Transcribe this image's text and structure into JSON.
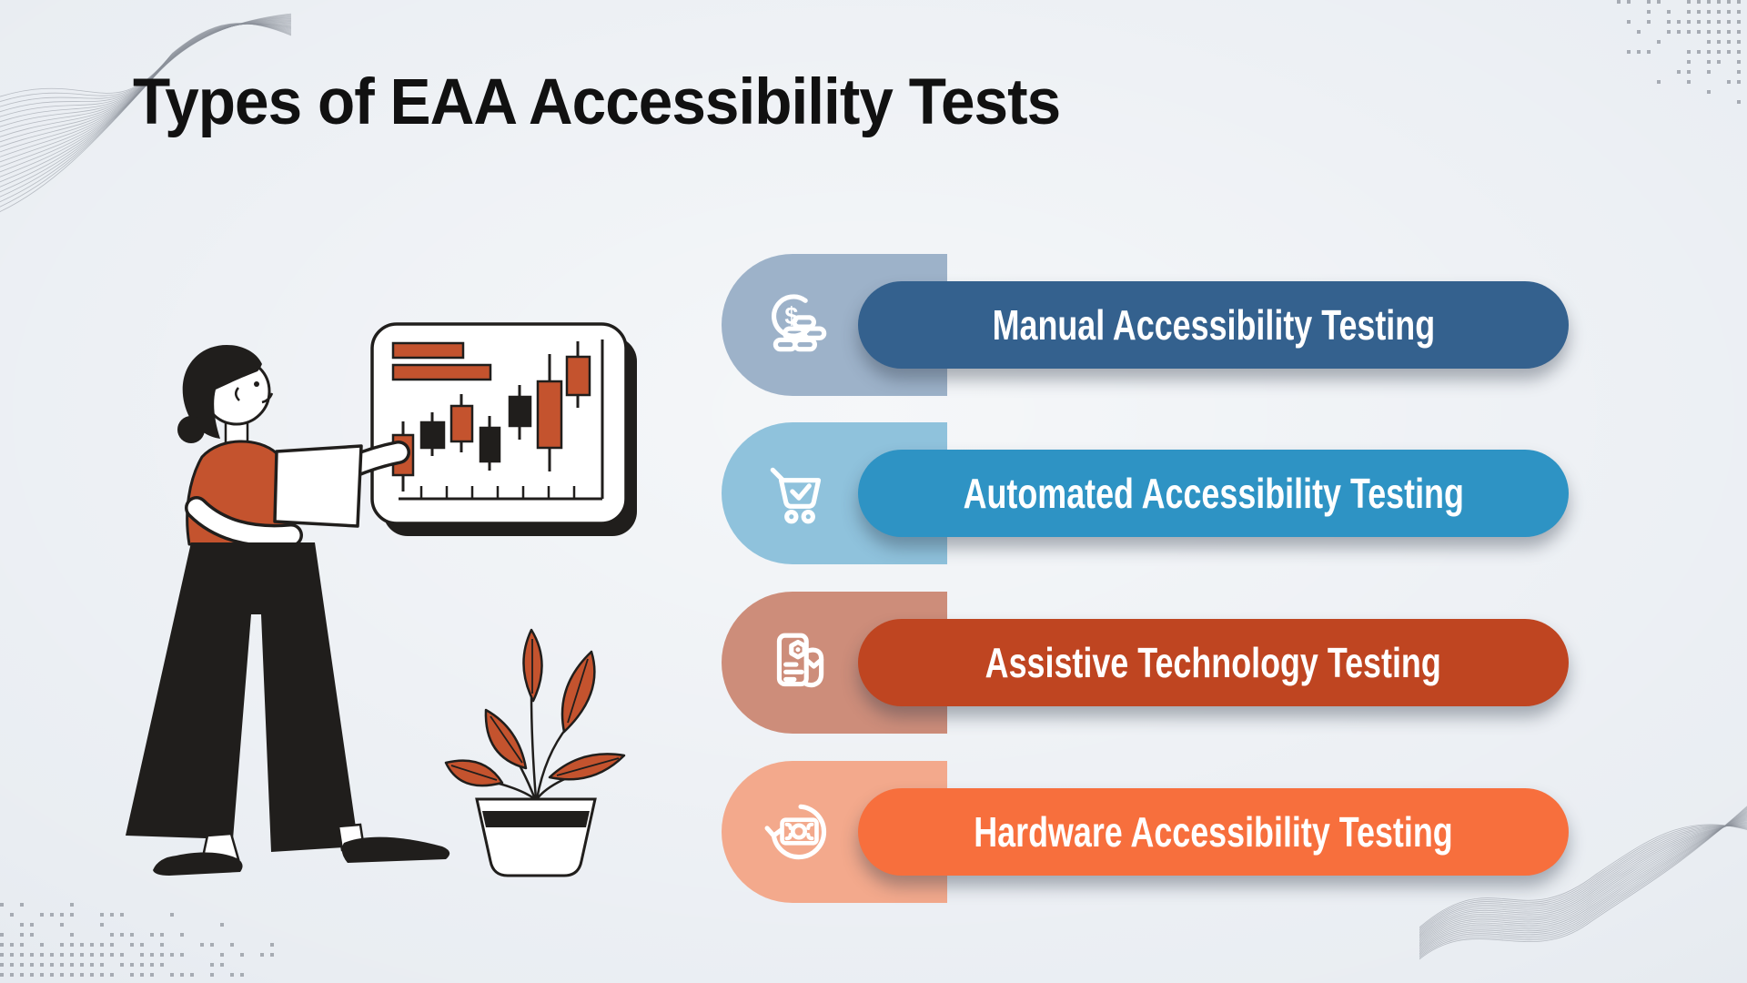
{
  "title": "Types of EAA Accessibility Tests",
  "title_color": "#111111",
  "background_color": "#E9EDF2",
  "decoration_color": "#8A9099",
  "items": [
    {
      "label": "Manual Accessibility Testing",
      "icon": "dollar-coins-icon",
      "pill_color": "#34618E",
      "tab_color": "#9DB2C9",
      "text_color": "#FFFFFF"
    },
    {
      "label": "Automated Accessibility Testing",
      "icon": "cart-check-icon",
      "pill_color": "#2E93C4",
      "tab_color": "#8FC2DC",
      "text_color": "#FFFFFF"
    },
    {
      "label": "Assistive Technology Testing",
      "icon": "receipt-icon",
      "pill_color": "#BF4521",
      "tab_color": "#CD8D7A",
      "text_color": "#FFFFFF"
    },
    {
      "label": "Hardware Accessibility Testing",
      "icon": "cash-refresh-icon",
      "pill_color": "#F76F3D",
      "tab_color": "#F3A98C",
      "text_color": "#FFFFFF"
    }
  ],
  "illustration": {
    "description": "Woman in orange top and black wide pants presenting a rising candlestick chart on a whiteboard, next to a potted plant with orange leaves",
    "accent_color": "#C4532E",
    "line_color": "#201E1C"
  }
}
